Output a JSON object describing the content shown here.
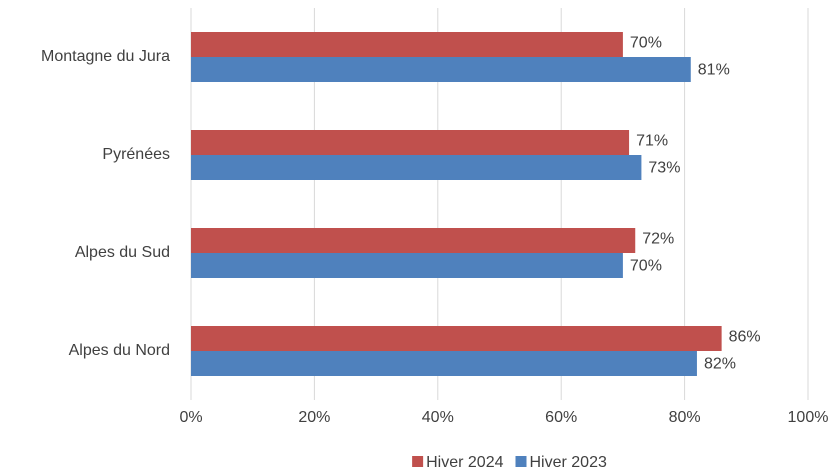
{
  "chart_data": {
    "type": "bar",
    "orientation": "horizontal",
    "categories": [
      "Montagne du Jura",
      "Pyrénées",
      "Alpes du Sud",
      "Alpes du Nord"
    ],
    "series": [
      {
        "name": "Hiver 2024",
        "color": "#c0504d",
        "values": [
          70,
          71,
          72,
          86
        ],
        "value_labels": [
          "70%",
          "71%",
          "72%",
          "86%"
        ]
      },
      {
        "name": "Hiver 2023",
        "color": "#4f81bd",
        "values": [
          81,
          73,
          70,
          82
        ],
        "value_labels": [
          "81%",
          "73%",
          "70%",
          "82%"
        ]
      }
    ],
    "xlim": [
      0,
      100
    ],
    "xticks": [
      {
        "value": 0,
        "label": "0%"
      },
      {
        "value": 20,
        "label": "20%"
      },
      {
        "value": 40,
        "label": "40%"
      },
      {
        "value": 60,
        "label": "60%"
      },
      {
        "value": 80,
        "label": "80%"
      },
      {
        "value": 100,
        "label": "100%"
      }
    ],
    "grid": true,
    "legend": "bottom"
  }
}
